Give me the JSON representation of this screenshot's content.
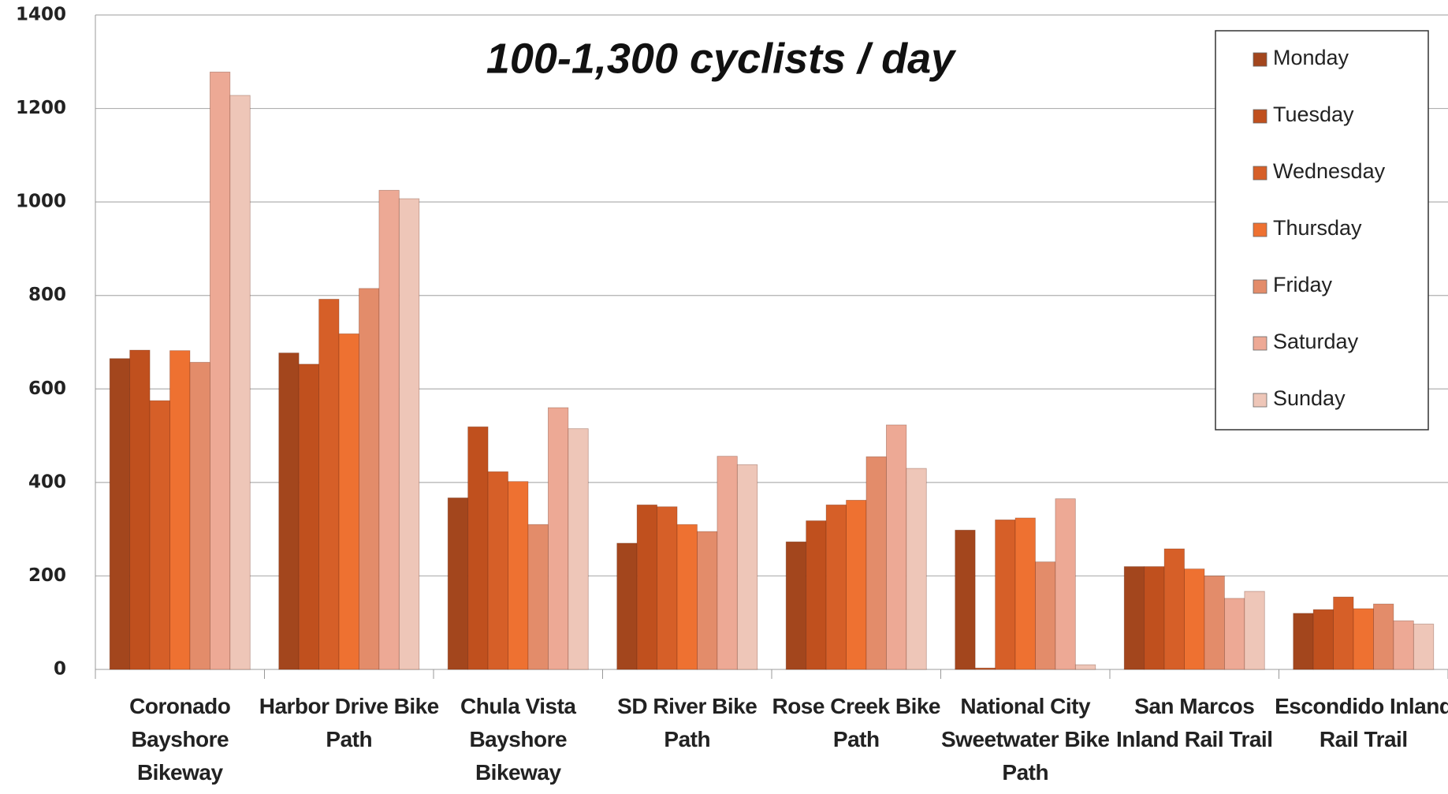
{
  "chart_data": {
    "type": "bar",
    "title": "100-1,300 cyclists / day",
    "categories": [
      "Coronado Bayshore Bikeway",
      "Harbor Drive Bike Path",
      "Chula Vista Bayshore Bikeway",
      "SD River Bike Path",
      "Rose Creek Bike Path",
      "National City Sweetwater Bike Path",
      "San Marcos Inland Rail Trail",
      "Escondido Inland Rail Trail"
    ],
    "series": [
      {
        "name": "Monday",
        "color": "#a3461d",
        "values": [
          665,
          677,
          367,
          270,
          273,
          298,
          220,
          120
        ]
      },
      {
        "name": "Tuesday",
        "color": "#c0501e",
        "values": [
          683,
          653,
          519,
          352,
          318,
          3,
          220,
          128
        ]
      },
      {
        "name": "Wednesday",
        "color": "#d65f28",
        "values": [
          575,
          792,
          423,
          348,
          352,
          320,
          258,
          155
        ]
      },
      {
        "name": "Thursday",
        "color": "#ee7131",
        "values": [
          682,
          718,
          402,
          310,
          362,
          324,
          215,
          130
        ]
      },
      {
        "name": "Friday",
        "color": "#e38c6a",
        "values": [
          657,
          815,
          310,
          295,
          455,
          230,
          200,
          140
        ]
      },
      {
        "name": "Saturday",
        "color": "#eda995",
        "values": [
          1278,
          1025,
          560,
          456,
          523,
          365,
          152,
          104
        ]
      },
      {
        "name": "Sunday",
        "color": "#eec6b8",
        "values": [
          1228,
          1007,
          515,
          438,
          430,
          10,
          167,
          97
        ]
      }
    ],
    "ylim": [
      0,
      1400
    ],
    "yticks": [
      0,
      200,
      400,
      600,
      800,
      1000,
      1200,
      1400
    ],
    "grid": true,
    "legend": "top-right"
  }
}
